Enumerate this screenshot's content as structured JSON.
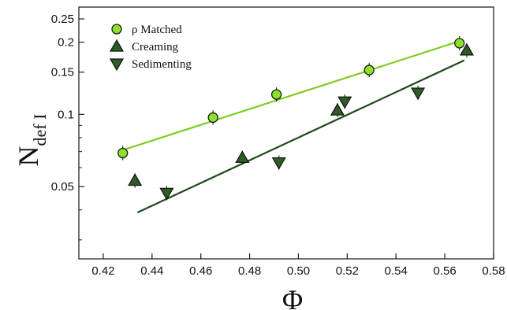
{
  "chart_data": {
    "type": "scatter",
    "title": "",
    "xlabel": "Φ",
    "ylabel": "N",
    "ylabel_subscript": "def I",
    "xlim": [
      0.41,
      0.58
    ],
    "ylim": [
      0.025,
      0.28
    ],
    "y_scale": "log",
    "grid": false,
    "legend_position": "top-left",
    "x_ticks": [
      "0.42",
      "0.44",
      "0.46",
      "0.48",
      "0.50",
      "0.52",
      "0.54",
      "0.56",
      "0.58"
    ],
    "y_ticks": [
      "0.05",
      "0.1",
      "0.15",
      "0.2",
      "0.25"
    ],
    "series": [
      {
        "name": "ρ Matched",
        "marker": "circle",
        "color": "#8de02c",
        "points": [
          {
            "x": 0.428,
            "y": 0.069
          },
          {
            "x": 0.465,
            "y": 0.097
          },
          {
            "x": 0.491,
            "y": 0.121
          },
          {
            "x": 0.529,
            "y": 0.153
          },
          {
            "x": 0.566,
            "y": 0.198
          }
        ],
        "fit": {
          "x": [
            0.428,
            0.566
          ],
          "y": [
            0.071,
            0.202
          ],
          "color": "#7fcc1f"
        }
      },
      {
        "name": "Creaming",
        "marker": "triangle-up",
        "color": "#2e5c25",
        "points": [
          {
            "x": 0.433,
            "y": 0.053
          },
          {
            "x": 0.477,
            "y": 0.066
          },
          {
            "x": 0.516,
            "y": 0.104
          },
          {
            "x": 0.569,
            "y": 0.185
          }
        ]
      },
      {
        "name": "Sedimenting",
        "marker": "triangle-down",
        "color": "#2e5c25",
        "points": [
          {
            "x": 0.446,
            "y": 0.047
          },
          {
            "x": 0.492,
            "y": 0.063
          },
          {
            "x": 0.519,
            "y": 0.113
          },
          {
            "x": 0.549,
            "y": 0.123
          }
        ],
        "fit": {
          "x": [
            0.434,
            0.568
          ],
          "y": [
            0.039,
            0.168
          ],
          "color": "#1e4a1b"
        }
      }
    ]
  }
}
